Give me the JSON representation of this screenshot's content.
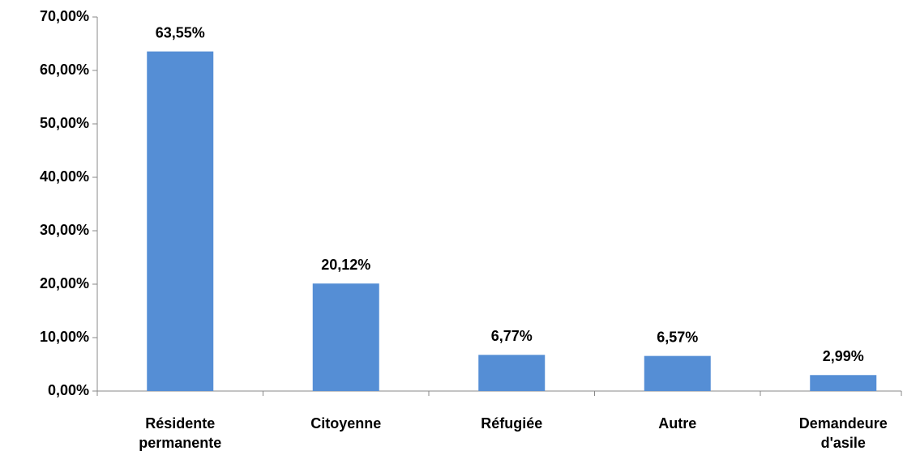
{
  "chart_data": {
    "type": "bar",
    "categories": [
      "Résidente permanente",
      "Citoyenne",
      "Réfugiée",
      "Autre",
      "Demandeure d'asile"
    ],
    "values": [
      63.55,
      20.12,
      6.77,
      6.57,
      2.99
    ],
    "value_labels": [
      "63,55%",
      "20,12%",
      "6,77%",
      "6,57%",
      "2,99%"
    ],
    "color": "#558ed5",
    "ylim": [
      0,
      70
    ],
    "yticks": [
      {
        "value": 0,
        "label": "0,00%"
      },
      {
        "value": 10,
        "label": "10,00%"
      },
      {
        "value": 20,
        "label": "20,00%"
      },
      {
        "value": 30,
        "label": "30,00%"
      },
      {
        "value": 40,
        "label": "40,00%"
      },
      {
        "value": 50,
        "label": "50,00%"
      },
      {
        "value": 60,
        "label": "60,00%"
      },
      {
        "value": 70,
        "label": "70,00%"
      }
    ],
    "grid": false
  }
}
